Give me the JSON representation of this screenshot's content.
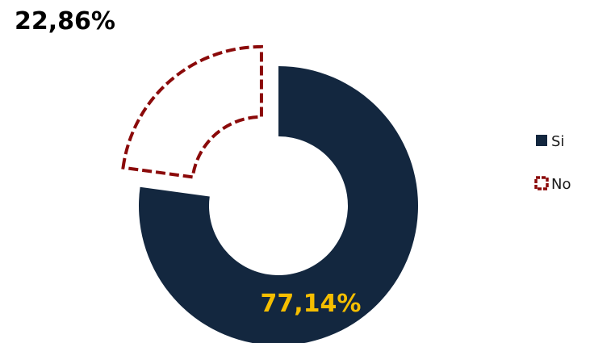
{
  "chart_data": {
    "type": "pie",
    "variant": "donut",
    "title": "",
    "categories": [
      "Si",
      "No"
    ],
    "values": [
      77.14,
      22.86
    ],
    "value_labels": [
      "77,14%",
      "22,86%"
    ],
    "unit": "%",
    "exploded": [
      "No"
    ],
    "legend_position": "right",
    "colors": {
      "Si": "#13273f",
      "No": "#8b0a0a",
      "si_label": "#f5be00",
      "no_label": "#000000"
    },
    "styles": {
      "Si": "solid",
      "No": "dashed-outline"
    }
  }
}
